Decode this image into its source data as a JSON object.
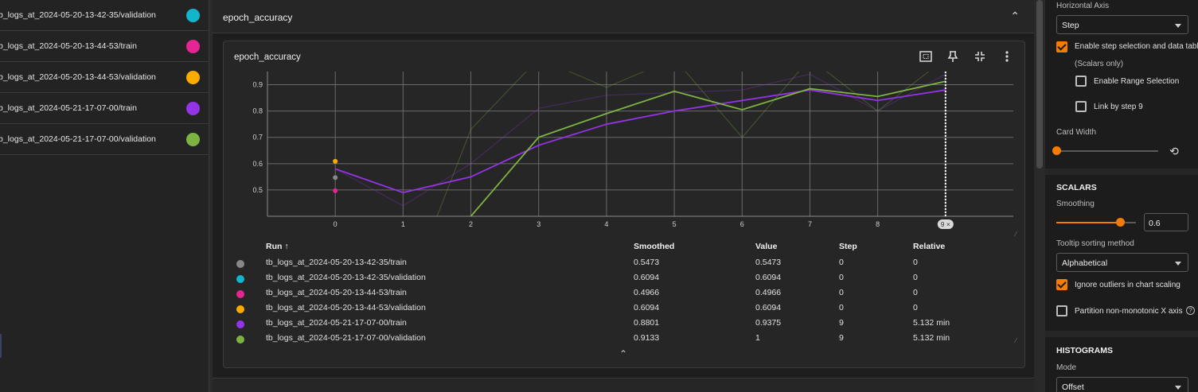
{
  "runs_sidebar": {
    "items": [
      {
        "label": "b_logs_at_2024-05-20-13-42-35/validation",
        "color": "#12b5cb"
      },
      {
        "label": "b_logs_at_2024-05-20-13-44-53/train",
        "color": "#e52592"
      },
      {
        "label": "b_logs_at_2024-05-20-13-44-53/validation",
        "color": "#f9ab00"
      },
      {
        "label": "b_logs_at_2024-05-21-17-07-00/train",
        "color": "#9334e6"
      },
      {
        "label": "b_logs_at_2024-05-21-17-07-00/validation",
        "color": "#7cb342"
      }
    ]
  },
  "group": {
    "title": "epoch_accuracy",
    "collapse_icon": "chevron-up-icon"
  },
  "card": {
    "title": "epoch_accuracy",
    "tool_icons": [
      "fit-to-domain-icon",
      "pin-icon",
      "fullscreen-exit-icon",
      "more-vert-icon"
    ],
    "step_marker": "9 ×"
  },
  "chart_data": {
    "type": "line",
    "title": "epoch_accuracy",
    "xlabel": "",
    "ylabel": "",
    "x_ticks": [
      0,
      1,
      2,
      3,
      4,
      5,
      6,
      7,
      8,
      9
    ],
    "y_ticks": [
      0.5,
      0.6,
      0.7,
      0.8,
      0.9
    ],
    "xlim": [
      -1.0,
      10.0
    ],
    "ylim": [
      0.4,
      0.95
    ],
    "grid": true,
    "series": [
      {
        "name": "tb_logs_at_2024-05-21-17-07-00/train",
        "color": "#9334e6",
        "x": [
          0,
          1,
          2,
          3,
          4,
          5,
          6,
          7,
          8,
          9
        ],
        "y": [
          0.58,
          0.49,
          0.55,
          0.67,
          0.75,
          0.8,
          0.84,
          0.88,
          0.84,
          0.88
        ]
      },
      {
        "name": "tb_logs_at_2024-05-21-17-07-00/validation",
        "color": "#7cb342",
        "x": [
          2,
          3,
          4,
          5,
          6,
          7,
          8,
          9
        ],
        "y": [
          0.4,
          0.7,
          0.79,
          0.875,
          0.805,
          0.885,
          0.855,
          0.913
        ]
      },
      {
        "name": "tb_logs_at_2024-05-20-13-42-35/train",
        "color": "#888888",
        "x": [
          0
        ],
        "y": [
          0.547
        ]
      },
      {
        "name": "tb_logs_at_2024-05-20-13-42-35/validation",
        "color": "#12b5cb",
        "x": [
          0
        ],
        "y": [
          0.609
        ]
      },
      {
        "name": "tb_logs_at_2024-05-20-13-44-53/train",
        "color": "#e52592",
        "x": [
          0
        ],
        "y": [
          0.497
        ]
      },
      {
        "name": "tb_logs_at_2024-05-20-13-44-53/validation",
        "color": "#f9ab00",
        "x": [
          0
        ],
        "y": [
          0.609
        ]
      }
    ],
    "raw_series": [
      {
        "of": "tb_logs_at_2024-05-21-17-07-00/train",
        "x": [
          0,
          1,
          2,
          3,
          4,
          5,
          6,
          7,
          8,
          9
        ],
        "y": [
          0.58,
          0.44,
          0.6,
          0.81,
          0.86,
          0.87,
          0.88,
          0.94,
          0.8,
          0.94
        ]
      },
      {
        "of": "tb_logs_at_2024-05-21-17-07-00/validation",
        "x": [
          1.5,
          2,
          3,
          4,
          5,
          6,
          7,
          8,
          9
        ],
        "y": [
          0.4,
          0.73,
          1.0,
          0.89,
          1.0,
          0.7,
          1.0,
          0.8,
          1.0
        ]
      }
    ],
    "current_step": 9
  },
  "table": {
    "headers": {
      "run": "Run ↑",
      "smoothed": "Smoothed",
      "value": "Value",
      "step": "Step",
      "relative": "Relative"
    },
    "rows": [
      {
        "color": "#888888",
        "run": "tb_logs_at_2024-05-20-13-42-35/train",
        "smoothed": "0.5473",
        "value": "0.5473",
        "step": "0",
        "relative": "0"
      },
      {
        "color": "#12b5cb",
        "run": "tb_logs_at_2024-05-20-13-42-35/validation",
        "smoothed": "0.6094",
        "value": "0.6094",
        "step": "0",
        "relative": "0"
      },
      {
        "color": "#e52592",
        "run": "tb_logs_at_2024-05-20-13-44-53/train",
        "smoothed": "0.4966",
        "value": "0.4966",
        "step": "0",
        "relative": "0"
      },
      {
        "color": "#f9ab00",
        "run": "tb_logs_at_2024-05-20-13-44-53/validation",
        "smoothed": "0.6094",
        "value": "0.6094",
        "step": "0",
        "relative": "0"
      },
      {
        "color": "#9334e6",
        "run": "tb_logs_at_2024-05-21-17-07-00/train",
        "smoothed": "0.8801",
        "value": "0.9375",
        "step": "9",
        "relative": "5.132 min"
      },
      {
        "color": "#7cb342",
        "run": "tb_logs_at_2024-05-21-17-07-00/validation",
        "smoothed": "0.9133",
        "value": "1",
        "step": "9",
        "relative": "5.132 min"
      }
    ]
  },
  "settings": {
    "horizontal_axis_label": "Horizontal Axis",
    "horizontal_axis_value": "Step",
    "enable_step_selection": "Enable step selection and data table",
    "scalars_only": "(Scalars only)",
    "enable_range_selection": "Enable Range Selection",
    "link_by_step": "Link by step 9",
    "card_width_label": "Card Width",
    "card_width_level": 0.0,
    "scalars_section": "SCALARS",
    "smoothing_label": "Smoothing",
    "smoothing_value": "0.6",
    "tooltip_sorting_label": "Tooltip sorting method",
    "tooltip_sorting_value": "Alphabetical",
    "ignore_outliers": "Ignore outliers in chart scaling",
    "partition_non_monotonic": "Partition non-monotonic X axis",
    "histograms_section": "HISTOGRAMS",
    "mode_label": "Mode",
    "mode_value": "Offset",
    "checkbox_states": {
      "step_selection": true,
      "range_selection": false,
      "link_by_step": false,
      "ignore_outliers": true,
      "partition_non_monotonic": false
    },
    "accent_color": "#f57c00"
  }
}
